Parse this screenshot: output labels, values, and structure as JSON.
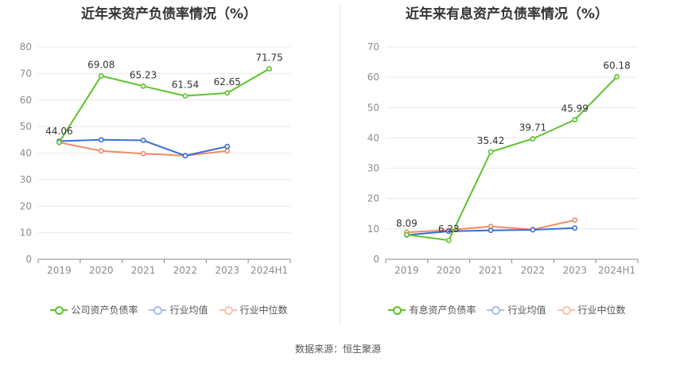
{
  "source_text": "数据来源：恒生聚源",
  "chart_data": [
    {
      "type": "line",
      "title": "近年来资产负债率情况（%）",
      "categories": [
        "2019",
        "2020",
        "2021",
        "2022",
        "2023",
        "2024H1"
      ],
      "ylim": [
        0,
        80
      ],
      "yticks": [
        0,
        10,
        20,
        30,
        40,
        50,
        60,
        70,
        80
      ],
      "grid": true,
      "legend_placement": "bottom",
      "series": [
        {
          "name": "公司资产负债率",
          "color": "#5bc42b",
          "values": [
            44.06,
            69.08,
            65.23,
            61.54,
            62.65,
            71.75
          ],
          "labels": [
            "44.06",
            "69.08",
            "65.23",
            "61.54",
            "62.65",
            "71.75"
          ]
        },
        {
          "name": "行业均值",
          "color": "#3a6fd8",
          "values": [
            44.5,
            45.0,
            44.8,
            39.0,
            42.5,
            null
          ]
        },
        {
          "name": "行业中位数",
          "color": "#f08b67",
          "values": [
            44.0,
            40.8,
            39.8,
            39.0,
            40.8,
            null
          ]
        }
      ]
    },
    {
      "type": "line",
      "title": "近年来有息资产负债率情况（%）",
      "categories": [
        "2019",
        "2020",
        "2021",
        "2022",
        "2023",
        "2024H1"
      ],
      "ylim": [
        0,
        70
      ],
      "yticks": [
        0,
        10,
        20,
        30,
        40,
        50,
        60,
        70
      ],
      "grid": true,
      "legend_placement": "bottom",
      "series": [
        {
          "name": "有息资产负债率",
          "color": "#5bc42b",
          "values": [
            8.09,
            6.23,
            35.42,
            39.71,
            45.99,
            60.18
          ],
          "labels": [
            "8.09",
            "6.23",
            "35.42",
            "39.71",
            "45.99",
            "60.18"
          ]
        },
        {
          "name": "行业均值",
          "color": "#3a6fd8",
          "values": [
            8.0,
            9.2,
            9.5,
            9.7,
            10.3,
            null
          ]
        },
        {
          "name": "行业中位数",
          "color": "#f08b67",
          "values": [
            8.9,
            9.6,
            10.8,
            9.8,
            12.9,
            null
          ]
        }
      ]
    }
  ]
}
